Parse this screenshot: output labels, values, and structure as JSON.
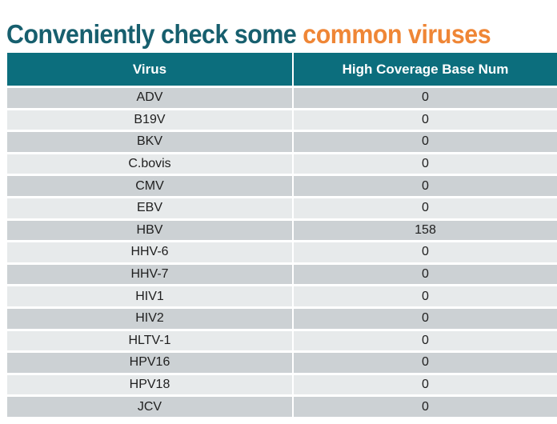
{
  "title": {
    "text_teal": "Conveniently check some",
    "text_orange": " common viruses"
  },
  "colors": {
    "title_teal": "#175f6e",
    "title_orange": "#ef8636",
    "header_teal": "#0c6e7d",
    "row_dark": "#ccd1d4",
    "row_light": "#e7eaeb"
  },
  "table": {
    "columns": [
      {
        "label": "Virus"
      },
      {
        "label": "High Coverage Base Num"
      }
    ],
    "rows": [
      {
        "virus": "ADV",
        "high_coverage_base_num": "0"
      },
      {
        "virus": "B19V",
        "high_coverage_base_num": "0"
      },
      {
        "virus": "BKV",
        "high_coverage_base_num": "0"
      },
      {
        "virus": "C.bovis",
        "high_coverage_base_num": "0"
      },
      {
        "virus": "CMV",
        "high_coverage_base_num": "0"
      },
      {
        "virus": "EBV",
        "high_coverage_base_num": "0"
      },
      {
        "virus": "HBV",
        "high_coverage_base_num": "158"
      },
      {
        "virus": "HHV-6",
        "high_coverage_base_num": "0"
      },
      {
        "virus": "HHV-7",
        "high_coverage_base_num": "0"
      },
      {
        "virus": "HIV1",
        "high_coverage_base_num": "0"
      },
      {
        "virus": "HIV2",
        "high_coverage_base_num": "0"
      },
      {
        "virus": "HLTV-1",
        "high_coverage_base_num": "0"
      },
      {
        "virus": "HPV16",
        "high_coverage_base_num": "0"
      },
      {
        "virus": "HPV18",
        "high_coverage_base_num": "0"
      },
      {
        "virus": "JCV",
        "high_coverage_base_num": "0"
      }
    ]
  },
  "chart_data": {
    "type": "table",
    "title": "Conveniently check some common viruses",
    "columns": [
      "Virus",
      "High Coverage Base Num"
    ],
    "rows": [
      [
        "ADV",
        0
      ],
      [
        "B19V",
        0
      ],
      [
        "BKV",
        0
      ],
      [
        "C.bovis",
        0
      ],
      [
        "CMV",
        0
      ],
      [
        "EBV",
        0
      ],
      [
        "HBV",
        158
      ],
      [
        "HHV-6",
        0
      ],
      [
        "HHV-7",
        0
      ],
      [
        "HIV1",
        0
      ],
      [
        "HIV2",
        0
      ],
      [
        "HLTV-1",
        0
      ],
      [
        "HPV16",
        0
      ],
      [
        "HPV18",
        0
      ],
      [
        "JCV",
        0
      ]
    ]
  }
}
